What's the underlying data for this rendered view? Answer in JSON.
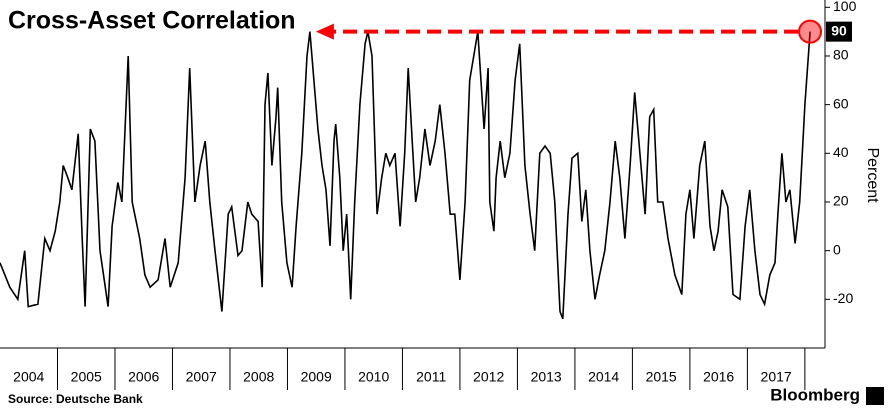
{
  "chart_data": {
    "type": "line",
    "title": "Cross-Asset Correlation",
    "y_axis_label": "Percent",
    "source": "Source: Deutsche Bank",
    "brand": "Bloomberg",
    "x": [
      2004.0,
      2004.17,
      2004.31,
      2004.43,
      2004.49,
      2004.66,
      2004.78,
      2004.87,
      2004.96,
      2005.04,
      2005.1,
      2005.18,
      2005.25,
      2005.36,
      2005.43,
      2005.48,
      2005.57,
      2005.65,
      2005.74,
      2005.88,
      2005.95,
      2006.05,
      2006.12,
      2006.23,
      2006.3,
      2006.43,
      2006.52,
      2006.61,
      2006.75,
      2006.87,
      2006.96,
      2007.1,
      2007.22,
      2007.3,
      2007.39,
      2007.48,
      2007.57,
      2007.65,
      2007.74,
      2007.86,
      2007.97,
      2008.03,
      2008.14,
      2008.21,
      2008.31,
      2008.38,
      2008.49,
      2008.56,
      2008.61,
      2008.66,
      2008.73,
      2008.8,
      2008.83,
      2008.9,
      2008.99,
      2009.08,
      2009.15,
      2009.25,
      2009.34,
      2009.39,
      2009.46,
      2009.53,
      2009.6,
      2009.67,
      2009.74,
      2009.81,
      2009.84,
      2009.91,
      2009.97,
      2010.03,
      2010.1,
      2010.17,
      2010.26,
      2010.35,
      2010.4,
      2010.47,
      2010.56,
      2010.64,
      2010.71,
      2010.78,
      2010.87,
      2010.96,
      2011.04,
      2011.1,
      2011.17,
      2011.23,
      2011.3,
      2011.39,
      2011.48,
      2011.57,
      2011.65,
      2011.74,
      2011.83,
      2011.91,
      2012.0,
      2012.09,
      2012.17,
      2012.31,
      2012.42,
      2012.49,
      2012.52,
      2012.59,
      2012.63,
      2012.7,
      2012.78,
      2012.87,
      2012.96,
      2013.04,
      2013.13,
      2013.22,
      2013.3,
      2013.39,
      2013.48,
      2013.57,
      2013.65,
      2013.74,
      2013.79,
      2013.88,
      2013.95,
      2014.05,
      2014.12,
      2014.19,
      2014.26,
      2014.35,
      2014.43,
      2014.52,
      2014.61,
      2014.7,
      2014.78,
      2014.87,
      2014.96,
      2015.04,
      2015.13,
      2015.22,
      2015.3,
      2015.37,
      2015.44,
      2015.53,
      2015.62,
      2015.74,
      2015.86,
      2015.93,
      2016.0,
      2016.07,
      2016.17,
      2016.26,
      2016.35,
      2016.42,
      2016.49,
      2016.56,
      2016.66,
      2016.75,
      2016.87,
      2016.96,
      2017.04,
      2017.13,
      2017.22,
      2017.3,
      2017.39,
      2017.48,
      2017.53,
      2017.6,
      2017.67,
      2017.74,
      2017.83,
      2017.91,
      2018.0,
      2018.09
    ],
    "values": [
      -5,
      -15,
      -20,
      0,
      -23,
      -22,
      5,
      0,
      8,
      20,
      35,
      30,
      25,
      48,
      5,
      -23,
      50,
      45,
      0,
      -23,
      10,
      28,
      20,
      80,
      20,
      5,
      -10,
      -15,
      -12,
      5,
      -15,
      -5,
      30,
      75,
      20,
      35,
      45,
      20,
      0,
      -25,
      15,
      18,
      -2,
      0,
      20,
      15,
      12,
      -15,
      60,
      73,
      35,
      55,
      67,
      20,
      -5,
      -15,
      10,
      40,
      80,
      90,
      70,
      50,
      35,
      25,
      2,
      45,
      52,
      30,
      0,
      15,
      -20,
      20,
      60,
      85,
      90,
      80,
      15,
      30,
      40,
      35,
      40,
      10,
      40,
      75,
      45,
      20,
      30,
      50,
      35,
      45,
      60,
      40,
      15,
      15,
      -12,
      20,
      70,
      90,
      50,
      75,
      20,
      8,
      30,
      45,
      30,
      40,
      70,
      85,
      35,
      15,
      0,
      40,
      43,
      40,
      20,
      -25,
      -28,
      15,
      38,
      40,
      12,
      25,
      0,
      -20,
      -10,
      0,
      20,
      45,
      30,
      5,
      35,
      65,
      40,
      15,
      55,
      58,
      20,
      20,
      5,
      -10,
      -18,
      15,
      25,
      5,
      35,
      45,
      10,
      0,
      8,
      25,
      18,
      -18,
      -20,
      10,
      25,
      0,
      -18,
      -22,
      -10,
      -5,
      15,
      40,
      20,
      25,
      3,
      20,
      60,
      90
    ],
    "color": "#000000",
    "annotation_color": "#ff0000",
    "xlim": [
      2004,
      2018.35
    ],
    "ylim": [
      -40,
      103
    ],
    "xticks": [
      {
        "value": 2004.5,
        "label": "2004"
      },
      {
        "value": 2005.5,
        "label": "2005"
      },
      {
        "value": 2006.5,
        "label": "2006"
      },
      {
        "value": 2007.5,
        "label": "2007"
      },
      {
        "value": 2008.5,
        "label": "2008"
      },
      {
        "value": 2009.5,
        "label": "2009"
      },
      {
        "value": 2010.5,
        "label": "2010"
      },
      {
        "value": 2011.5,
        "label": "2011"
      },
      {
        "value": 2012.5,
        "label": "2012"
      },
      {
        "value": 2013.5,
        "label": "2013"
      },
      {
        "value": 2014.5,
        "label": "2014"
      },
      {
        "value": 2015.5,
        "label": "2015"
      },
      {
        "value": 2016.5,
        "label": "2016"
      },
      {
        "value": 2017.5,
        "label": "2017"
      }
    ],
    "yticks": [
      -20,
      0,
      20,
      40,
      60,
      80,
      100
    ],
    "grid": false
  }
}
